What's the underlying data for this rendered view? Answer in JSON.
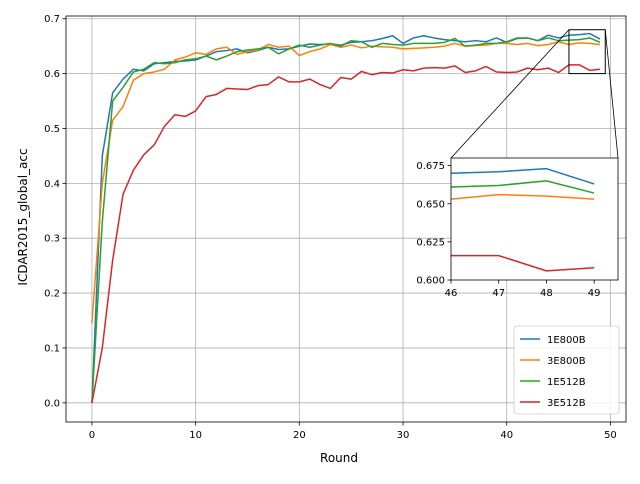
{
  "chart_data": {
    "type": "line",
    "xlabel": "Round",
    "ylabel": "ICDAR2015_global_acc",
    "xlim": [
      -2.5,
      51.5
    ],
    "ylim": [
      -0.035,
      0.705
    ],
    "xticks": [
      0,
      10,
      20,
      30,
      40,
      50
    ],
    "yticks": [
      0.0,
      0.1,
      0.2,
      0.3,
      0.4,
      0.5,
      0.6,
      0.7
    ],
    "ytick_labels": [
      "0.0",
      "0.1",
      "0.2",
      "0.3",
      "0.4",
      "0.5",
      "0.6",
      "0.7"
    ],
    "grid": true,
    "legend": "lower-right",
    "x": [
      0,
      1,
      2,
      3,
      4,
      5,
      6,
      7,
      8,
      9,
      10,
      11,
      12,
      13,
      14,
      15,
      16,
      17,
      18,
      19,
      20,
      21,
      22,
      23,
      24,
      25,
      26,
      27,
      28,
      29,
      30,
      31,
      32,
      33,
      34,
      35,
      36,
      37,
      38,
      39,
      40,
      41,
      42,
      43,
      44,
      45,
      46,
      47,
      48,
      49
    ],
    "series": [
      {
        "name": "1E800B",
        "color": "#1f77b4",
        "values": [
          0.0,
          0.45,
          0.565,
          0.59,
          0.608,
          0.605,
          0.618,
          0.62,
          0.622,
          0.623,
          0.625,
          0.632,
          0.64,
          0.642,
          0.645,
          0.638,
          0.642,
          0.648,
          0.644,
          0.645,
          0.65,
          0.654,
          0.653,
          0.654,
          0.652,
          0.657,
          0.658,
          0.66,
          0.664,
          0.669,
          0.655,
          0.665,
          0.669,
          0.665,
          0.662,
          0.66,
          0.658,
          0.66,
          0.658,
          0.665,
          0.657,
          0.664,
          0.665,
          0.66,
          0.67,
          0.665,
          0.67,
          0.671,
          0.673,
          0.663
        ]
      },
      {
        "name": "3E800B",
        "color": "#ff7f0e",
        "values": [
          0.145,
          0.4,
          0.515,
          0.54,
          0.588,
          0.6,
          0.603,
          0.608,
          0.625,
          0.63,
          0.638,
          0.635,
          0.645,
          0.648,
          0.635,
          0.64,
          0.643,
          0.653,
          0.648,
          0.65,
          0.633,
          0.64,
          0.645,
          0.653,
          0.648,
          0.652,
          0.647,
          0.65,
          0.649,
          0.648,
          0.645,
          0.646,
          0.647,
          0.648,
          0.65,
          0.655,
          0.65,
          0.651,
          0.652,
          0.655,
          0.655,
          0.653,
          0.655,
          0.651,
          0.653,
          0.658,
          0.653,
          0.656,
          0.655,
          0.653
        ]
      },
      {
        "name": "1E512B",
        "color": "#2ca02c",
        "values": [
          0.0,
          0.33,
          0.55,
          0.575,
          0.603,
          0.608,
          0.62,
          0.618,
          0.62,
          0.625,
          0.627,
          0.632,
          0.625,
          0.632,
          0.64,
          0.643,
          0.645,
          0.648,
          0.636,
          0.645,
          0.652,
          0.648,
          0.652,
          0.655,
          0.65,
          0.66,
          0.658,
          0.648,
          0.655,
          0.653,
          0.652,
          0.655,
          0.655,
          0.655,
          0.657,
          0.664,
          0.65,
          0.652,
          0.655,
          0.655,
          0.658,
          0.665,
          0.665,
          0.66,
          0.665,
          0.66,
          0.661,
          0.662,
          0.665,
          0.657
        ]
      },
      {
        "name": "3E512B",
        "color": "#d62728",
        "values": [
          0.0,
          0.1,
          0.26,
          0.38,
          0.424,
          0.452,
          0.47,
          0.504,
          0.525,
          0.522,
          0.532,
          0.558,
          0.562,
          0.573,
          0.572,
          0.571,
          0.578,
          0.58,
          0.594,
          0.585,
          0.585,
          0.59,
          0.58,
          0.573,
          0.593,
          0.59,
          0.604,
          0.598,
          0.602,
          0.601,
          0.607,
          0.605,
          0.61,
          0.611,
          0.61,
          0.614,
          0.602,
          0.605,
          0.613,
          0.603,
          0.602,
          0.603,
          0.61,
          0.607,
          0.61,
          0.602,
          0.616,
          0.616,
          0.606,
          0.608
        ]
      }
    ],
    "inset": {
      "xlim": [
        46,
        49.5
      ],
      "ylim": [
        0.6,
        0.68
      ],
      "xticks": [
        46,
        47,
        48,
        49
      ],
      "yticks": [
        0.6,
        0.625,
        0.65,
        0.675
      ],
      "ytick_labels": [
        "0.600",
        "0.625",
        "0.650",
        "0.675"
      ]
    }
  }
}
